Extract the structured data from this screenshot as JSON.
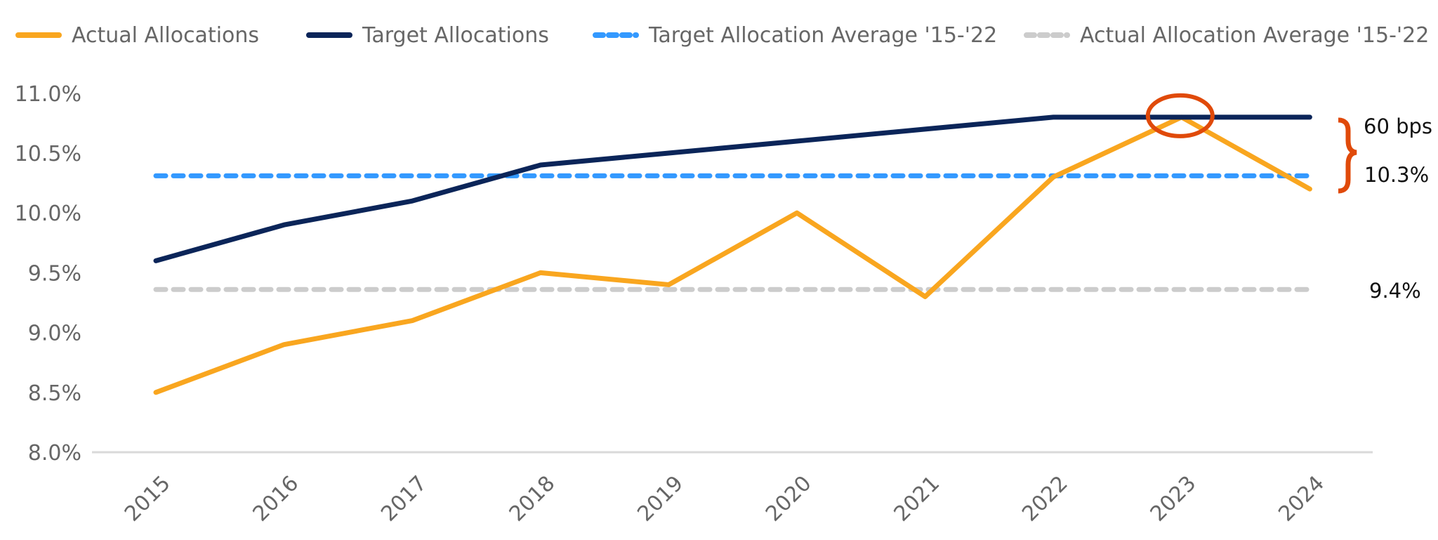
{
  "chart_data": {
    "type": "line",
    "categories": [
      "2015",
      "2016",
      "2017",
      "2018",
      "2019",
      "2020",
      "2021",
      "2022",
      "2023",
      "2024"
    ],
    "ylim": [
      8.0,
      11.0
    ],
    "yticks": [
      "8.0%",
      "8.5%",
      "9.0%",
      "9.5%",
      "10.0%",
      "10.5%",
      "11.0%"
    ],
    "ytick_values": [
      8.0,
      8.5,
      9.0,
      9.5,
      10.0,
      10.5,
      11.0
    ],
    "grid": false,
    "legend_position": "top",
    "series": [
      {
        "name": "Actual Allocations",
        "color": "#F9A61F",
        "style": "solid",
        "values": [
          8.5,
          8.9,
          9.1,
          9.5,
          9.4,
          10.0,
          9.3,
          10.3,
          10.8,
          10.2
        ]
      },
      {
        "name": "Target Allocations",
        "color": "#0B2559",
        "style": "solid",
        "values": [
          9.6,
          9.9,
          10.1,
          10.4,
          10.5,
          10.6,
          10.7,
          10.8,
          10.8,
          10.8
        ]
      },
      {
        "name": "Target Allocation Average '15-'22",
        "color": "#3399FF",
        "style": "dashed",
        "values": [
          10.31,
          10.31,
          10.31,
          10.31,
          10.31,
          10.31,
          10.31,
          10.31,
          10.31,
          10.31
        ]
      },
      {
        "name": "Actual Allocation Average '15-'22",
        "color": "#CCCCCC",
        "style": "dashed",
        "values": [
          9.36,
          9.36,
          9.36,
          9.36,
          9.36,
          9.36,
          9.36,
          9.36,
          9.36,
          9.36
        ]
      }
    ],
    "annotations": {
      "gap_label": "60 bps",
      "target_avg_label": "10.3%",
      "actual_avg_label": "9.4%",
      "highlight_category": "2023",
      "highlight_color": "#E04A0A"
    }
  }
}
